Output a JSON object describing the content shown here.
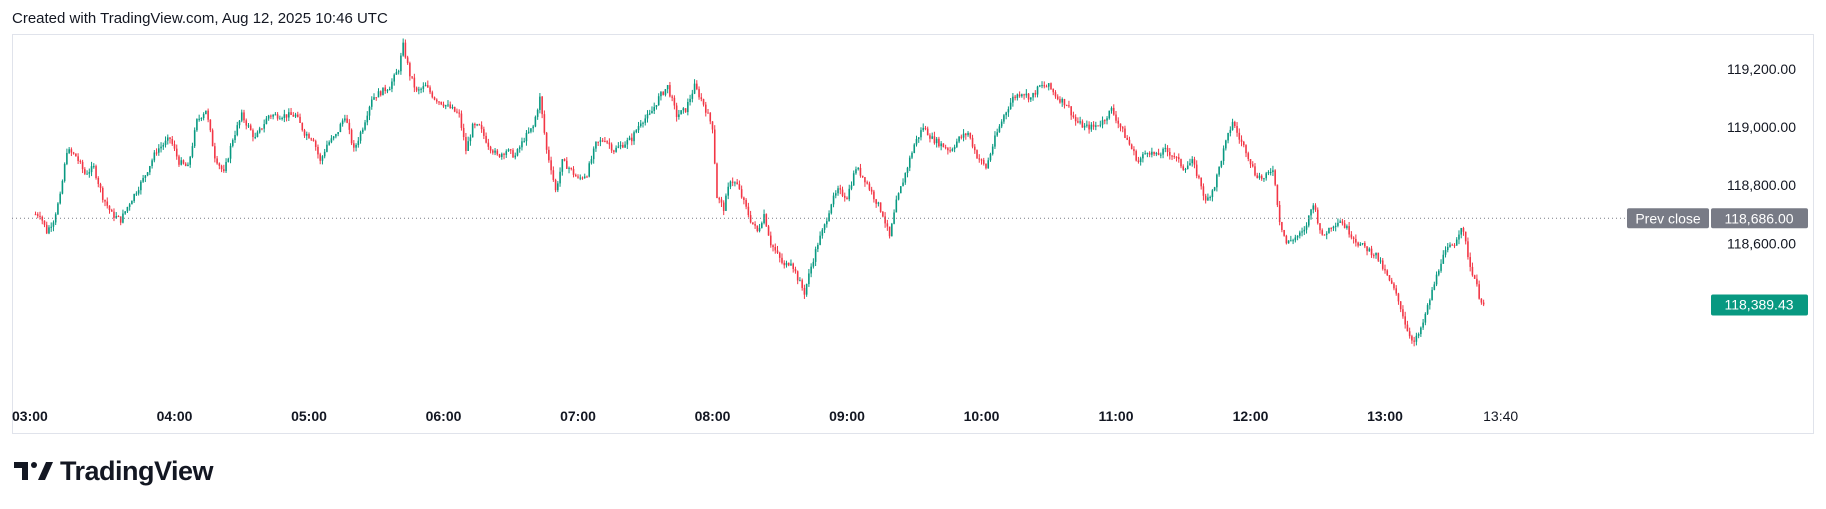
{
  "header": {
    "created_text": "Created with TradingView.com, Aug 12, 2025 10:46 UTC"
  },
  "brand": {
    "name": "TradingView",
    "logo_icon": "tradingview-logo-icon"
  },
  "colors": {
    "up": "#089981",
    "down": "#f23645",
    "prev_close_label": "#787b86",
    "last_price_label": "#089981",
    "axis_text": "#131722",
    "border": "#e0e3eb"
  },
  "chart_data": {
    "type": "candlestick",
    "interval_minutes": 1,
    "x_ticks": [
      "03:00",
      "04:00",
      "05:00",
      "06:00",
      "07:00",
      "08:00",
      "09:00",
      "10:00",
      "11:00",
      "12:00",
      "13:00",
      "13:40"
    ],
    "y_ticks": [
      "119,200.00",
      "119,000.00",
      "118,800.00",
      "118,600.00"
    ],
    "ylim": [
      118250,
      119320
    ],
    "prev_close": {
      "label": "Prev close",
      "value": "118,686.00"
    },
    "last_price": {
      "value": "118,389.43"
    },
    "grid": false,
    "price_path": [
      [
        "03:00",
        118700
      ],
      [
        "03:03",
        118640
      ],
      [
        "03:06",
        118680
      ],
      [
        "03:09",
        118760
      ],
      [
        "03:12",
        118920
      ],
      [
        "03:16",
        118900
      ],
      [
        "03:20",
        118840
      ],
      [
        "03:24",
        118860
      ],
      [
        "03:28",
        118760
      ],
      [
        "03:32",
        118700
      ],
      [
        "03:36",
        118680
      ],
      [
        "03:40",
        118740
      ],
      [
        "03:46",
        118820
      ],
      [
        "03:52",
        118920
      ],
      [
        "03:58",
        118960
      ],
      [
        "04:02",
        118880
      ],
      [
        "04:06",
        118860
      ],
      [
        "04:10",
        119020
      ],
      [
        "04:14",
        119060
      ],
      [
        "04:18",
        118900
      ],
      [
        "04:22",
        118840
      ],
      [
        "04:26",
        118960
      ],
      [
        "04:30",
        119040
      ],
      [
        "04:36",
        118960
      ],
      [
        "04:42",
        119040
      ],
      [
        "04:48",
        119040
      ],
      [
        "04:54",
        119040
      ],
      [
        "04:58",
        118980
      ],
      [
        "05:02",
        118960
      ],
      [
        "05:05",
        118880
      ],
      [
        "05:08",
        118940
      ],
      [
        "05:12",
        118970
      ],
      [
        "05:16",
        119040
      ],
      [
        "05:20",
        118920
      ],
      [
        "05:24",
        119000
      ],
      [
        "05:28",
        119100
      ],
      [
        "05:32",
        119120
      ],
      [
        "05:36",
        119140
      ],
      [
        "05:40",
        119200
      ],
      [
        "05:42",
        119280
      ],
      [
        "05:45",
        119180
      ],
      [
        "05:48",
        119120
      ],
      [
        "05:52",
        119140
      ],
      [
        "05:56",
        119100
      ],
      [
        "06:00",
        119080
      ],
      [
        "06:04",
        119060
      ],
      [
        "06:07",
        119040
      ],
      [
        "06:10",
        118920
      ],
      [
        "06:13",
        119000
      ],
      [
        "06:16",
        119000
      ],
      [
        "06:20",
        118940
      ],
      [
        "06:24",
        118900
      ],
      [
        "06:28",
        118920
      ],
      [
        "06:32",
        118900
      ],
      [
        "06:36",
        118960
      ],
      [
        "06:40",
        119000
      ],
      [
        "06:43",
        119100
      ],
      [
        "06:46",
        118920
      ],
      [
        "06:48",
        118860
      ],
      [
        "06:50",
        118780
      ],
      [
        "06:53",
        118880
      ],
      [
        "06:56",
        118860
      ],
      [
        "07:00",
        118820
      ],
      [
        "07:04",
        118840
      ],
      [
        "07:08",
        118940
      ],
      [
        "07:12",
        118960
      ],
      [
        "07:16",
        118920
      ],
      [
        "07:20",
        118940
      ],
      [
        "07:24",
        118960
      ],
      [
        "07:28",
        119020
      ],
      [
        "07:32",
        119040
      ],
      [
        "07:36",
        119100
      ],
      [
        "07:40",
        119140
      ],
      [
        "07:44",
        119040
      ],
      [
        "07:48",
        119060
      ],
      [
        "07:52",
        119140
      ],
      [
        "07:56",
        119080
      ],
      [
        "08:00",
        119000
      ],
      [
        "08:02",
        118760
      ],
      [
        "08:05",
        118720
      ],
      [
        "08:08",
        118820
      ],
      [
        "08:11",
        118800
      ],
      [
        "08:14",
        118740
      ],
      [
        "08:17",
        118680
      ],
      [
        "08:20",
        118640
      ],
      [
        "08:23",
        118700
      ],
      [
        "08:26",
        118600
      ],
      [
        "08:29",
        118560
      ],
      [
        "08:32",
        118520
      ],
      [
        "08:35",
        118540
      ],
      [
        "08:38",
        118480
      ],
      [
        "08:41",
        118430
      ],
      [
        "08:44",
        118520
      ],
      [
        "08:47",
        118600
      ],
      [
        "08:50",
        118660
      ],
      [
        "08:53",
        118740
      ],
      [
        "08:56",
        118780
      ],
      [
        "09:00",
        118760
      ],
      [
        "09:04",
        118860
      ],
      [
        "09:08",
        118820
      ],
      [
        "09:12",
        118760
      ],
      [
        "09:16",
        118700
      ],
      [
        "09:19",
        118620
      ],
      [
        "09:22",
        118740
      ],
      [
        "09:26",
        118840
      ],
      [
        "09:30",
        118940
      ],
      [
        "09:34",
        119000
      ],
      [
        "09:38",
        118960
      ],
      [
        "09:42",
        118940
      ],
      [
        "09:46",
        118920
      ],
      [
        "09:50",
        118960
      ],
      [
        "09:54",
        118980
      ],
      [
        "09:58",
        118900
      ],
      [
        "10:02",
        118860
      ],
      [
        "10:06",
        118960
      ],
      [
        "10:10",
        119040
      ],
      [
        "10:14",
        119100
      ],
      [
        "10:18",
        119120
      ],
      [
        "10:22",
        119100
      ],
      [
        "10:26",
        119140
      ],
      [
        "10:30",
        119140
      ],
      [
        "10:34",
        119100
      ],
      [
        "10:38",
        119080
      ],
      [
        "10:42",
        119020
      ],
      [
        "10:46",
        119000
      ],
      [
        "10:50",
        119000
      ],
      [
        "10:54",
        119020
      ],
      [
        "10:58",
        119060
      ],
      [
        "11:02",
        119000
      ],
      [
        "11:06",
        118940
      ],
      [
        "11:10",
        118880
      ],
      [
        "11:14",
        118920
      ],
      [
        "11:18",
        118900
      ],
      [
        "11:22",
        118920
      ],
      [
        "11:26",
        118900
      ],
      [
        "11:30",
        118860
      ],
      [
        "11:34",
        118880
      ],
      [
        "11:38",
        118800
      ],
      [
        "11:40",
        118740
      ],
      [
        "11:44",
        118800
      ],
      [
        "11:48",
        118920
      ],
      [
        "11:52",
        119020
      ],
      [
        "11:55",
        118960
      ],
      [
        "11:58",
        118920
      ],
      [
        "12:02",
        118840
      ],
      [
        "12:06",
        118820
      ],
      [
        "12:10",
        118860
      ],
      [
        "12:13",
        118680
      ],
      [
        "12:16",
        118600
      ],
      [
        "12:20",
        118620
      ],
      [
        "12:24",
        118640
      ],
      [
        "12:28",
        118740
      ],
      [
        "12:32",
        118620
      ],
      [
        "12:36",
        118660
      ],
      [
        "12:40",
        118680
      ],
      [
        "12:44",
        118640
      ],
      [
        "12:48",
        118600
      ],
      [
        "12:52",
        118580
      ],
      [
        "12:56",
        118560
      ],
      [
        "13:00",
        118500
      ],
      [
        "13:04",
        118440
      ],
      [
        "13:07",
        118380
      ],
      [
        "13:10",
        118300
      ],
      [
        "13:13",
        118260
      ],
      [
        "13:16",
        118300
      ],
      [
        "13:19",
        118380
      ],
      [
        "13:22",
        118460
      ],
      [
        "13:25",
        118540
      ],
      [
        "13:28",
        118580
      ],
      [
        "13:31",
        118600
      ],
      [
        "13:34",
        118660
      ],
      [
        "13:36",
        118600
      ],
      [
        "13:38",
        118520
      ],
      [
        "13:40",
        118480
      ],
      [
        "13:42",
        118420
      ],
      [
        "13:44",
        118389.43
      ]
    ]
  }
}
